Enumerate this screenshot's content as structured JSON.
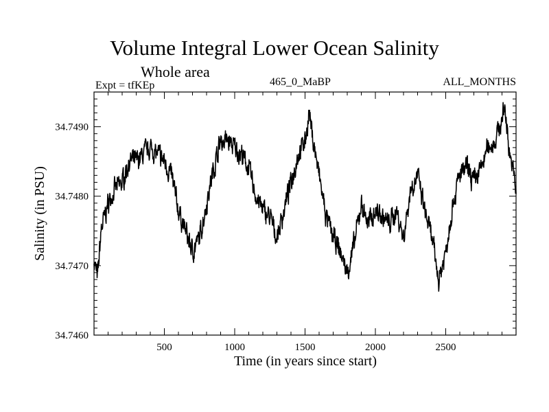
{
  "header": {
    "title": "Volume Integral Lower Ocean Salinity",
    "subtitle": "Whole area",
    "expt_label": "Expt = tfKEp",
    "center_label": "465_0_MaBP",
    "right_label": "ALL_MONTHS"
  },
  "chart_data": {
    "type": "line",
    "title": "Volume Integral Lower Ocean Salinity",
    "subtitle": "Whole area",
    "xlabel": "Time (in years since start)",
    "ylabel": "Salinity (in PSU)",
    "xlim": [
      0,
      3000
    ],
    "ylim": [
      34.746,
      34.7495
    ],
    "x_ticks": [
      500,
      1000,
      1500,
      2000,
      2500
    ],
    "x_tick_labels": [
      "500",
      "1000",
      "1500",
      "2000",
      "2500"
    ],
    "y_ticks": [
      34.746,
      34.747,
      34.748,
      34.749
    ],
    "y_tick_labels": [
      "34.7460",
      "34.7470",
      "34.7480",
      "34.7490"
    ],
    "grid": false,
    "line_color": "#000000",
    "series": [
      {
        "x": [
          0,
          25,
          50,
          100,
          150,
          200,
          250,
          300,
          350,
          400,
          450,
          500,
          550,
          600,
          650,
          700,
          750,
          800,
          850,
          900,
          950,
          1000,
          1050,
          1100,
          1150,
          1200,
          1250,
          1300,
          1350,
          1400,
          1450,
          1500,
          1530,
          1550,
          1600,
          1650,
          1700,
          1750,
          1800,
          1850,
          1900,
          1950,
          2000,
          2050,
          2100,
          2150,
          2200,
          2250,
          2300,
          2350,
          2400,
          2450,
          2500,
          2550,
          2600,
          2650,
          2700,
          2750,
          2800,
          2850,
          2900,
          2920,
          2950,
          3000
        ],
        "values": [
          34.7471,
          34.7468,
          34.7475,
          34.7479,
          34.7481,
          34.7482,
          34.7485,
          34.7485,
          34.7486,
          34.7487,
          34.7486,
          34.7485,
          34.7483,
          34.7478,
          34.7475,
          34.7472,
          34.7474,
          34.7479,
          34.7484,
          34.7488,
          34.7488,
          34.7487,
          34.7486,
          34.7484,
          34.748,
          34.7478,
          34.7477,
          34.7474,
          34.7478,
          34.7482,
          34.7486,
          34.7488,
          34.7492,
          34.7489,
          34.7483,
          34.7477,
          34.7474,
          34.7472,
          34.7469,
          34.7473,
          34.7479,
          34.7476,
          34.7478,
          34.7477,
          34.7476,
          34.7478,
          34.7474,
          34.7481,
          34.7483,
          34.7478,
          34.7474,
          34.7468,
          34.7472,
          34.7479,
          34.7483,
          34.7484,
          34.7482,
          34.7484,
          34.7487,
          34.7488,
          34.7491,
          34.7493,
          34.7487,
          34.7481
        ]
      }
    ]
  }
}
